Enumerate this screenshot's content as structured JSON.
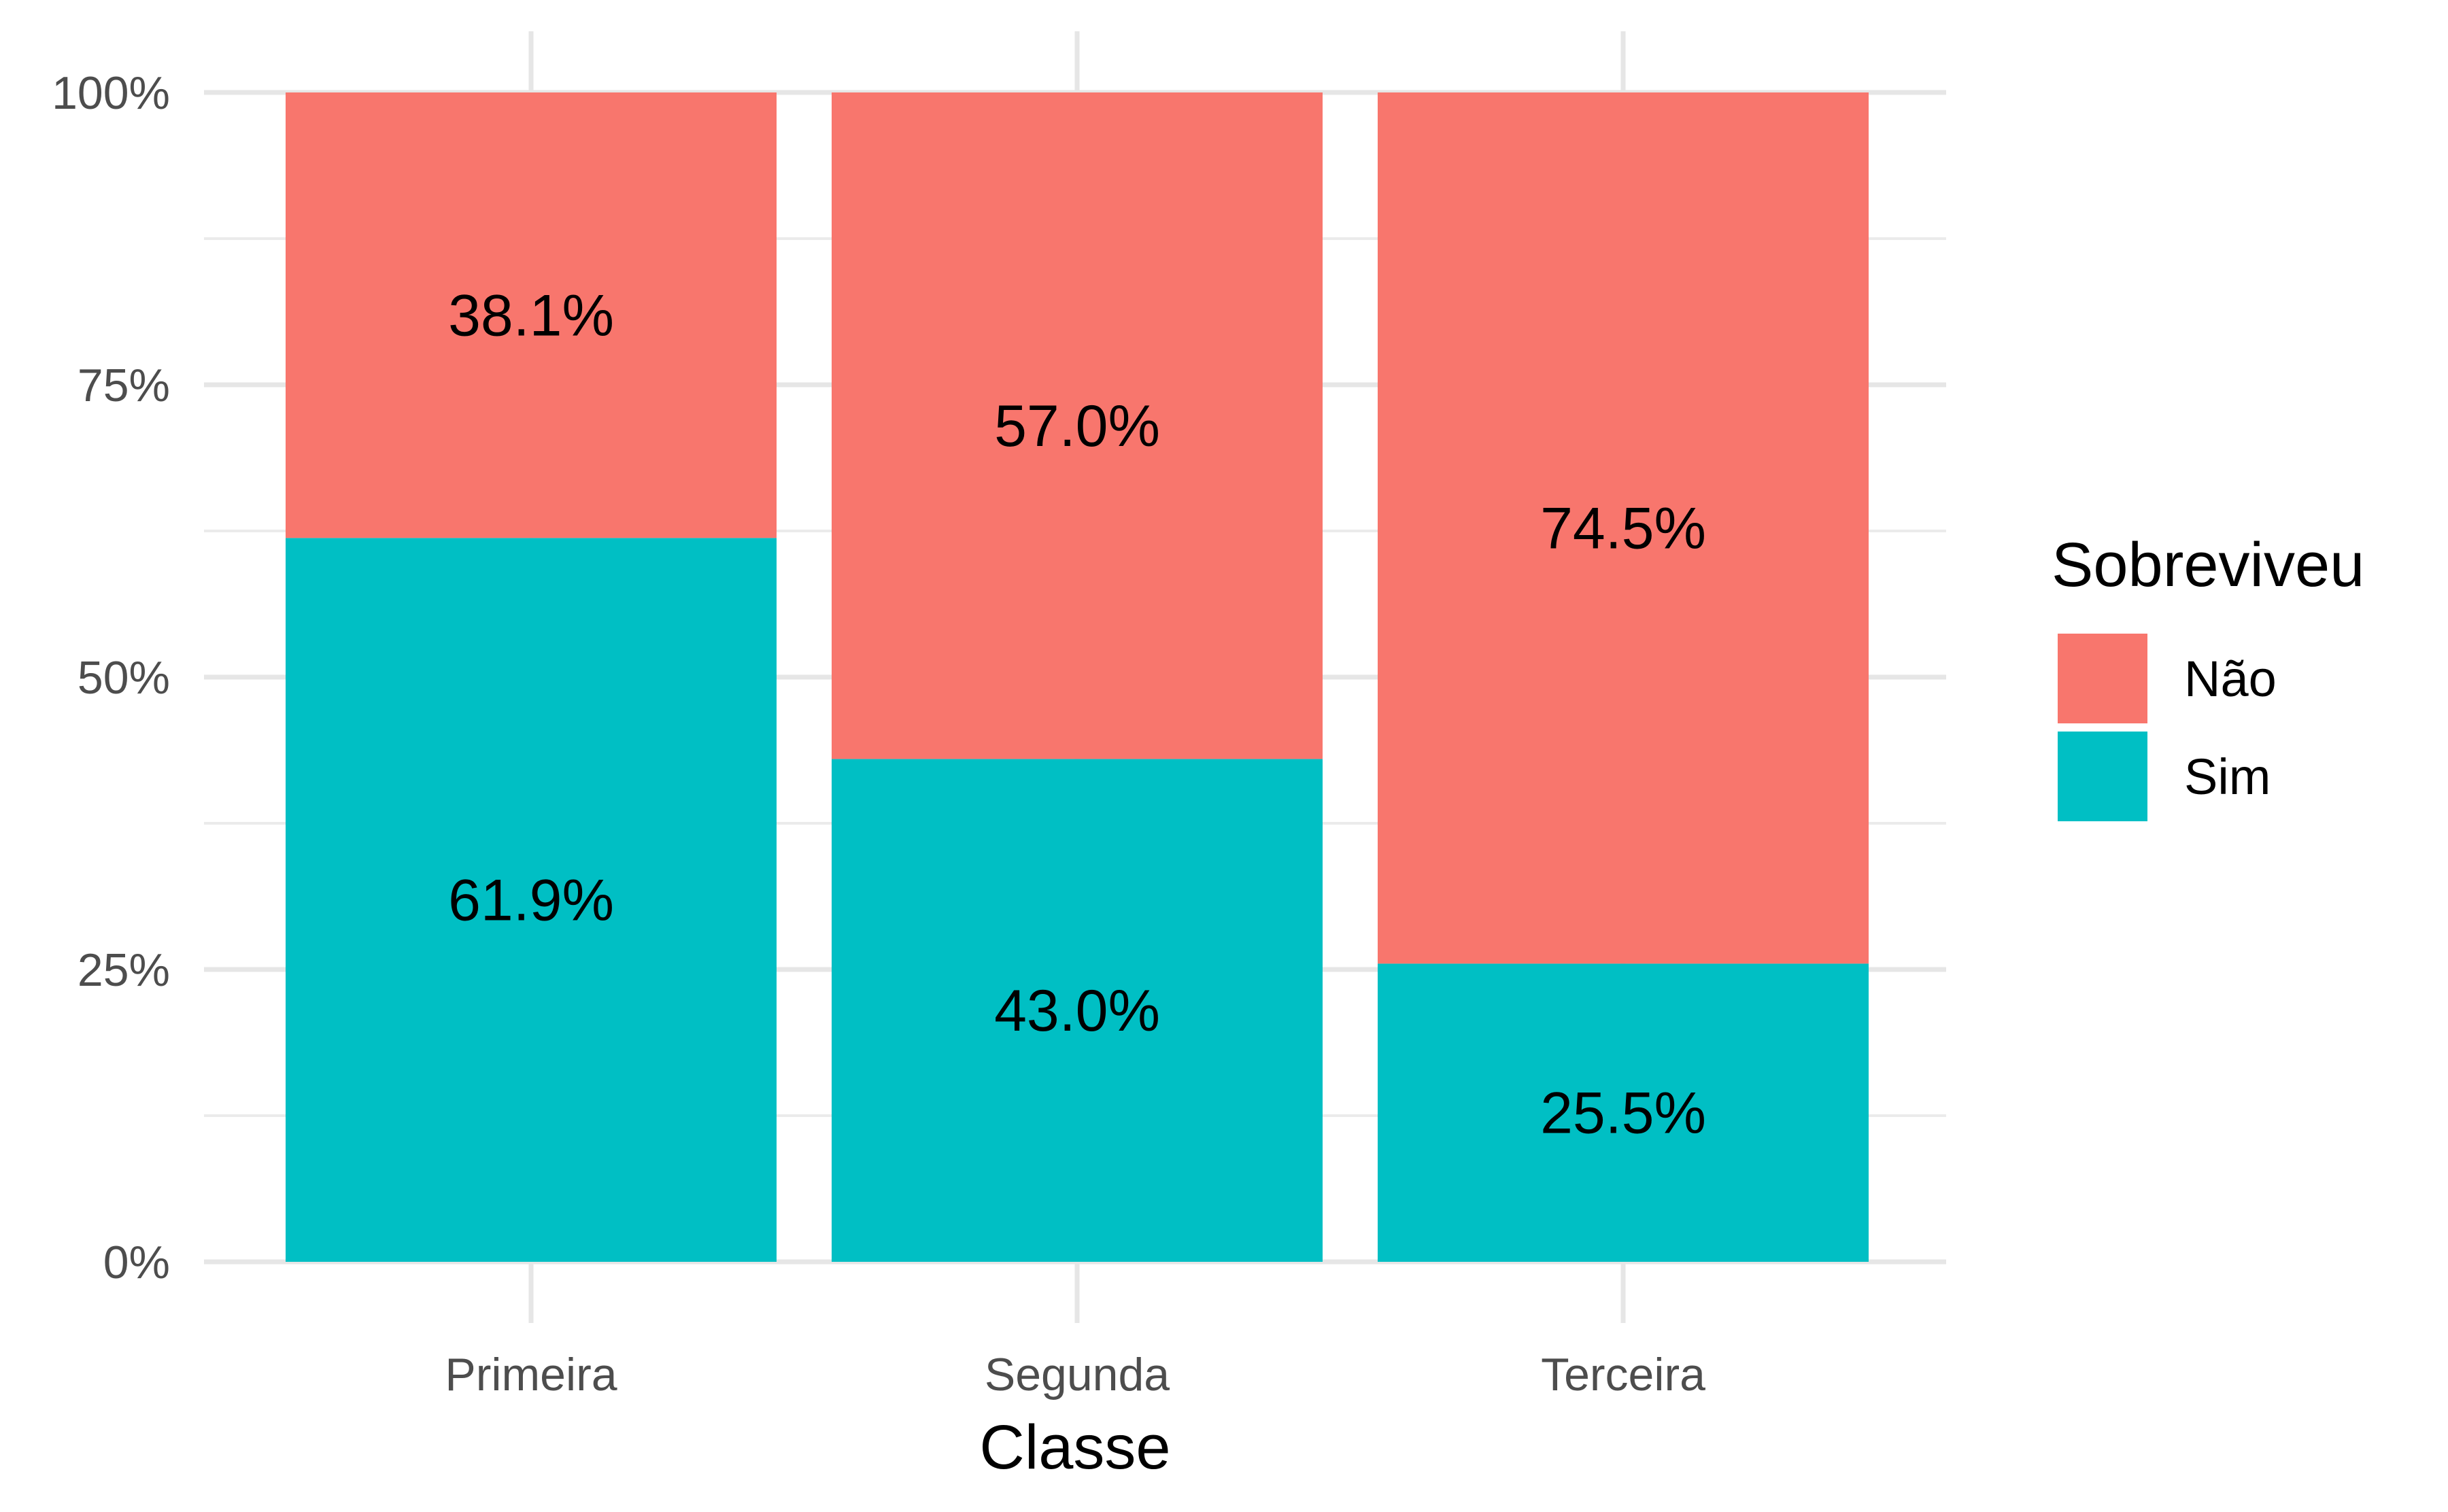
{
  "chart_data": {
    "type": "bar",
    "stacked": true,
    "xlabel": "Classe",
    "ylabel": "",
    "ylim": [
      0,
      100
    ],
    "y_ticks": [
      "0%",
      "25%",
      "50%",
      "75%",
      "100%"
    ],
    "categories": [
      "Primeira",
      "Segunda",
      "Terceira"
    ],
    "series": [
      {
        "name": "Sim",
        "color": "#00BFC4",
        "values": [
          61.9,
          43.0,
          25.5
        ],
        "labels": [
          "61.9%",
          "43.0%",
          "25.5%"
        ]
      },
      {
        "name": "Não",
        "color": "#F8766D",
        "values": [
          38.1,
          57.0,
          74.5
        ],
        "labels": [
          "38.1%",
          "57.0%",
          "74.5%"
        ]
      }
    ],
    "grid": true,
    "legend": {
      "title": "Sobreviveu",
      "position": "right",
      "entries": [
        {
          "label": "Não",
          "color": "#F8766D"
        },
        {
          "label": "Sim",
          "color": "#00BFC4"
        }
      ]
    }
  }
}
